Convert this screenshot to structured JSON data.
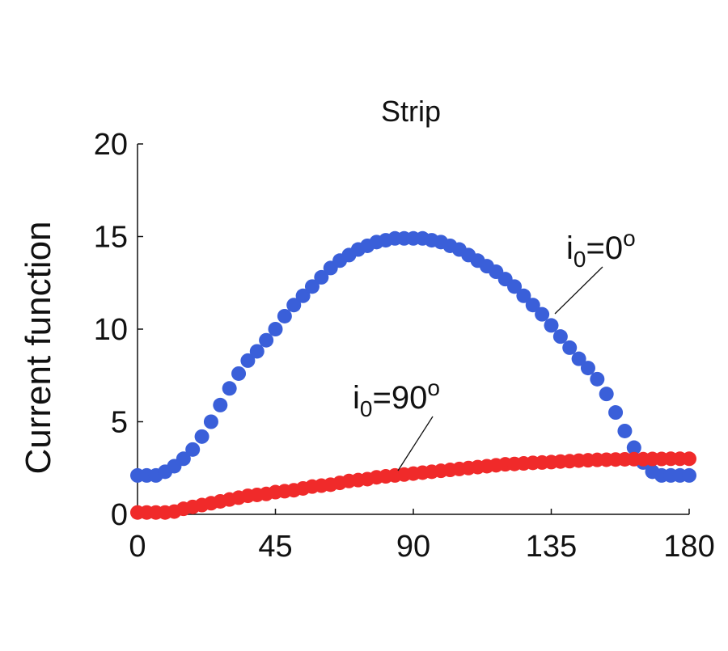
{
  "chart_data": {
    "type": "scatter",
    "title": "Strip",
    "xlabel": "",
    "ylabel": "Current function",
    "xlim": [
      0,
      180
    ],
    "ylim": [
      0,
      20
    ],
    "xticks": [
      0,
      45,
      90,
      135,
      180
    ],
    "yticks": [
      0,
      5,
      10,
      15,
      20
    ],
    "grid": false,
    "series": [
      {
        "color": "#3a5fd9",
        "annotation": {
          "base": "i",
          "sub": "0",
          "rest": "=0",
          "sup": "o"
        },
        "points": [
          [
            0,
            2.1
          ],
          [
            3,
            2.1
          ],
          [
            6,
            2.1
          ],
          [
            9,
            2.3
          ],
          [
            12,
            2.6
          ],
          [
            15,
            3.0
          ],
          [
            18,
            3.5
          ],
          [
            21,
            4.2
          ],
          [
            24,
            5.0
          ],
          [
            27,
            5.9
          ],
          [
            30,
            6.8
          ],
          [
            33,
            7.6
          ],
          [
            36,
            8.3
          ],
          [
            39,
            8.8
          ],
          [
            42,
            9.4
          ],
          [
            45,
            10.0
          ],
          [
            48,
            10.7
          ],
          [
            51,
            11.3
          ],
          [
            54,
            11.8
          ],
          [
            57,
            12.3
          ],
          [
            60,
            12.8
          ],
          [
            63,
            13.3
          ],
          [
            66,
            13.7
          ],
          [
            69,
            14.0
          ],
          [
            72,
            14.3
          ],
          [
            75,
            14.5
          ],
          [
            78,
            14.7
          ],
          [
            81,
            14.8
          ],
          [
            84,
            14.9
          ],
          [
            87,
            14.9
          ],
          [
            90,
            14.9
          ],
          [
            93,
            14.9
          ],
          [
            96,
            14.8
          ],
          [
            99,
            14.7
          ],
          [
            102,
            14.5
          ],
          [
            105,
            14.3
          ],
          [
            108,
            14.0
          ],
          [
            111,
            13.7
          ],
          [
            114,
            13.4
          ],
          [
            117,
            13.1
          ],
          [
            120,
            12.7
          ],
          [
            123,
            12.3
          ],
          [
            126,
            11.8
          ],
          [
            129,
            11.3
          ],
          [
            132,
            10.8
          ],
          [
            135,
            10.2
          ],
          [
            138,
            9.6
          ],
          [
            141,
            9.0
          ],
          [
            144,
            8.4
          ],
          [
            147,
            7.9
          ],
          [
            150,
            7.3
          ],
          [
            153,
            6.5
          ],
          [
            156,
            5.5
          ],
          [
            159,
            4.5
          ],
          [
            162,
            3.6
          ],
          [
            165,
            2.8
          ],
          [
            168,
            2.3
          ],
          [
            171,
            2.1
          ],
          [
            174,
            2.1
          ],
          [
            177,
            2.1
          ],
          [
            180,
            2.1
          ]
        ]
      },
      {
        "color": "#f02a2a",
        "annotation": {
          "base": "i",
          "sub": "0",
          "rest": "=90",
          "sup": "o"
        },
        "points": [
          [
            0,
            0.1
          ],
          [
            3,
            0.1
          ],
          [
            6,
            0.1
          ],
          [
            9,
            0.1
          ],
          [
            12,
            0.15
          ],
          [
            15,
            0.3
          ],
          [
            18,
            0.4
          ],
          [
            21,
            0.5
          ],
          [
            24,
            0.6
          ],
          [
            27,
            0.7
          ],
          [
            30,
            0.8
          ],
          [
            33,
            0.9
          ],
          [
            36,
            1.0
          ],
          [
            39,
            1.05
          ],
          [
            42,
            1.1
          ],
          [
            45,
            1.2
          ],
          [
            48,
            1.25
          ],
          [
            51,
            1.3
          ],
          [
            54,
            1.4
          ],
          [
            57,
            1.5
          ],
          [
            60,
            1.55
          ],
          [
            63,
            1.6
          ],
          [
            66,
            1.7
          ],
          [
            69,
            1.8
          ],
          [
            72,
            1.85
          ],
          [
            75,
            1.9
          ],
          [
            78,
            2.0
          ],
          [
            81,
            2.05
          ],
          [
            84,
            2.1
          ],
          [
            87,
            2.15
          ],
          [
            90,
            2.2
          ],
          [
            93,
            2.25
          ],
          [
            96,
            2.3
          ],
          [
            99,
            2.35
          ],
          [
            102,
            2.4
          ],
          [
            105,
            2.45
          ],
          [
            108,
            2.5
          ],
          [
            111,
            2.55
          ],
          [
            114,
            2.6
          ],
          [
            117,
            2.65
          ],
          [
            120,
            2.7
          ],
          [
            123,
            2.72
          ],
          [
            126,
            2.75
          ],
          [
            129,
            2.78
          ],
          [
            132,
            2.8
          ],
          [
            135,
            2.82
          ],
          [
            138,
            2.85
          ],
          [
            141,
            2.87
          ],
          [
            144,
            2.9
          ],
          [
            147,
            2.92
          ],
          [
            150,
            2.94
          ],
          [
            153,
            2.95
          ],
          [
            156,
            2.96
          ],
          [
            159,
            2.97
          ],
          [
            162,
            2.98
          ],
          [
            165,
            2.98
          ],
          [
            168,
            2.99
          ],
          [
            171,
            2.99
          ],
          [
            174,
            3.0
          ],
          [
            177,
            3.0
          ],
          [
            180,
            3.0
          ]
        ]
      }
    ]
  }
}
